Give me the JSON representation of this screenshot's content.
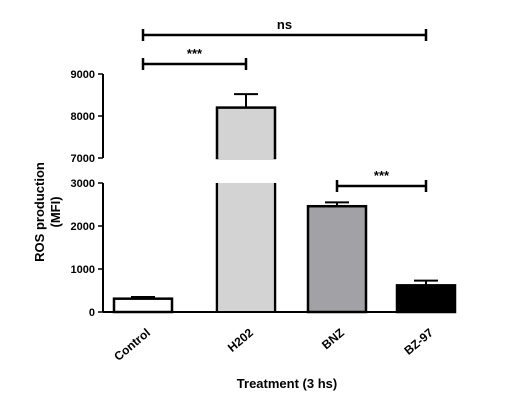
{
  "chart_data": {
    "type": "bar",
    "xlabel": "Treatment (3 hs)",
    "ylabel_lines": [
      "ROS production",
      "(MFI)"
    ],
    "categories": [
      "Control",
      "H202",
      "BNZ",
      "BZ-97"
    ],
    "values": [
      310,
      8200,
      2460,
      620
    ],
    "errors": [
      40,
      320,
      90,
      110
    ],
    "bar_colors": [
      "#ffffff",
      "#d3d3d3",
      "#a2a2a6",
      "#000000"
    ],
    "broken_axis": {
      "lower_range": [
        0,
        3000
      ],
      "upper_range": [
        7000,
        9000
      ]
    },
    "y_ticks_lower": [
      "0",
      "1000",
      "2000",
      "3000"
    ],
    "y_ticks_upper": [
      "7000",
      "8000",
      "9000"
    ],
    "significance": [
      {
        "from": "Control",
        "to": "H202",
        "label": "***"
      },
      {
        "from": "BNZ",
        "to": "BZ-97",
        "label": "***"
      },
      {
        "from": "Control",
        "to": "BZ-97",
        "label": "ns"
      }
    ]
  }
}
